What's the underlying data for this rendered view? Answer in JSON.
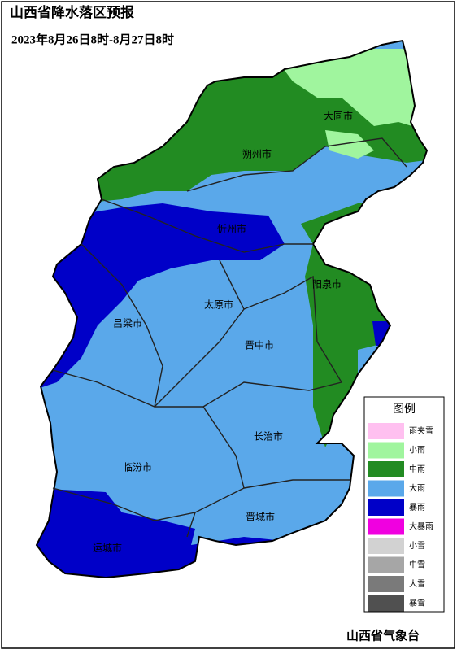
{
  "header": {
    "title": "山西省降水落区预报",
    "period": "2023年8月26日8时-8月27日8时"
  },
  "cities": [
    "大同市",
    "朔州市",
    "忻州市",
    "阳泉市",
    "太原市",
    "吕梁市",
    "晋中市",
    "长治市",
    "临汾市",
    "晋城市",
    "运城市"
  ],
  "legend": {
    "title": "图例",
    "items": [
      {
        "label": "雨夹雪",
        "color": "#ffc0f0"
      },
      {
        "label": "小雨",
        "color": "#a0f59e"
      },
      {
        "label": "中雨",
        "color": "#228b22"
      },
      {
        "label": "大雨",
        "color": "#5aa8ea"
      },
      {
        "label": "暴雨",
        "color": "#0000c8"
      },
      {
        "label": "大暴雨",
        "color": "#f000e0"
      },
      {
        "label": "小雪",
        "color": "#d2d2d2"
      },
      {
        "label": "中雪",
        "color": "#a6a6a6"
      },
      {
        "label": "大雪",
        "color": "#7a7a7a"
      },
      {
        "label": "暴雪",
        "color": "#505050"
      }
    ]
  },
  "footer": "山西省气象台"
}
